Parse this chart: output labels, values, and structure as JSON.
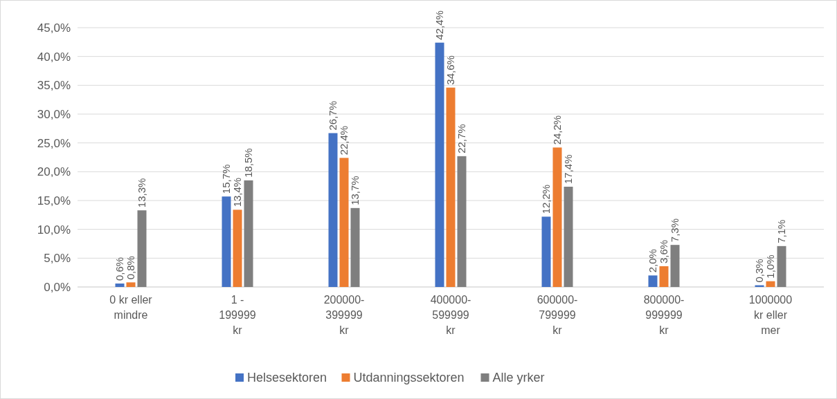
{
  "chart_data": {
    "type": "bar",
    "categories": [
      "0 kr eller\nmindre",
      "1 -\n199999\nkr",
      "200000-\n399999\nkr",
      "400000-\n599999\nkr",
      "600000-\n799999\nkr",
      "800000-\n999999\nkr",
      "1000000\nkr eller\nmer"
    ],
    "series": [
      {
        "name": "Helsesektoren",
        "color": "#4472c4",
        "values": [
          0.6,
          15.7,
          26.7,
          42.4,
          12.2,
          2.0,
          0.3
        ],
        "value_labels": [
          "0,6%",
          "15,7%",
          "26,7%",
          "42,4%",
          "12,2%",
          "2,0%",
          "0,3%"
        ]
      },
      {
        "name": "Utdanningssektoren",
        "color": "#ed7d31",
        "values": [
          0.8,
          13.4,
          22.4,
          34.6,
          24.2,
          3.6,
          1.0
        ],
        "value_labels": [
          "0,8%",
          "13,4%",
          "22,4%",
          "34,6%",
          "24,2%",
          "3,6%",
          "1,0%"
        ]
      },
      {
        "name": "Alle yrker",
        "color": "#7f7f7f",
        "values": [
          13.3,
          18.5,
          13.7,
          22.7,
          17.4,
          7.3,
          7.1
        ],
        "value_labels": [
          "13,3%",
          "18,5%",
          "13,7%",
          "22,7%",
          "17,4%",
          "7,3%",
          "7,1%"
        ]
      }
    ],
    "ylim": [
      0,
      45
    ],
    "yticks": [
      {
        "value": 0,
        "label": "0,0%"
      },
      {
        "value": 5,
        "label": "5,0%"
      },
      {
        "value": 10,
        "label": "10,0%"
      },
      {
        "value": 15,
        "label": "15,0%"
      },
      {
        "value": 20,
        "label": "20,0%"
      },
      {
        "value": 25,
        "label": "25,0%"
      },
      {
        "value": 30,
        "label": "30,0%"
      },
      {
        "value": 35,
        "label": "35,0%"
      },
      {
        "value": 40,
        "label": "40,0%"
      },
      {
        "value": 45,
        "label": "45,0%"
      }
    ],
    "grid": "y",
    "legend": "bottom"
  }
}
